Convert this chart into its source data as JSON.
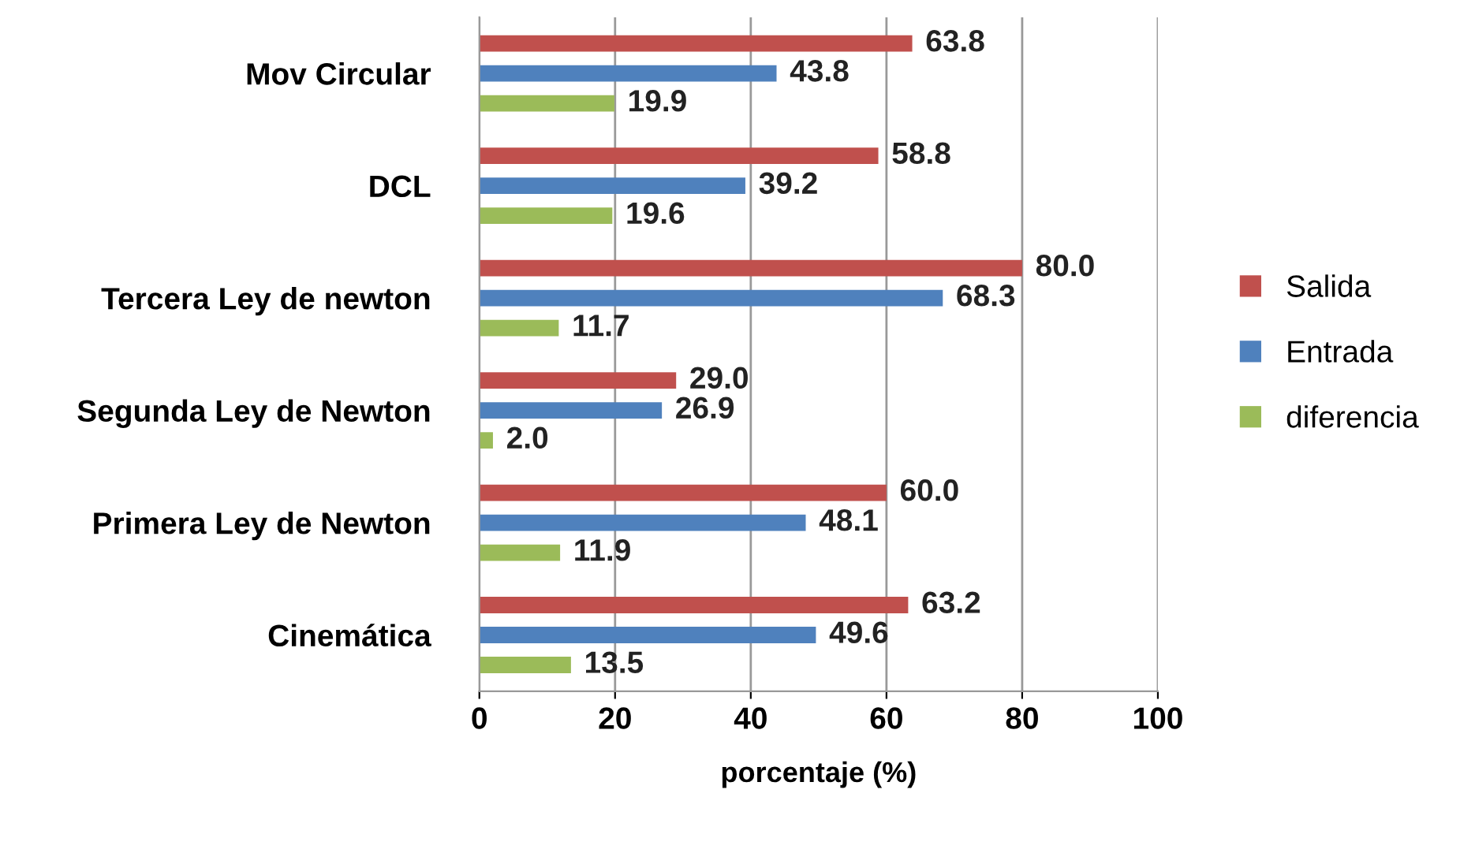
{
  "chart_data": {
    "type": "bar",
    "orientation": "horizontal",
    "xlabel": "porcentaje (%)",
    "categories": [
      "Mov Circular",
      "DCL",
      "Tercera Ley de newton",
      "Segunda Ley de Newton",
      "Primera Ley de Newton",
      "Cinemática"
    ],
    "series": [
      {
        "name": "Salida",
        "color": "#c0504d",
        "values": [
          63.8,
          58.8,
          80.0,
          29.0,
          60.0,
          63.2
        ],
        "value_labels": [
          "63.8",
          "58.8",
          "80.0",
          "29.0",
          "60.0",
          "63.2"
        ]
      },
      {
        "name": "Entrada",
        "color": "#4f81bd",
        "values": [
          43.8,
          39.2,
          68.3,
          26.9,
          48.1,
          49.6
        ],
        "value_labels": [
          "43.8",
          "39.2",
          "68.3",
          "26.9",
          "48.1",
          "49.6"
        ]
      },
      {
        "name": "diferencia",
        "color": "#9bbb59",
        "values": [
          19.9,
          19.6,
          11.7,
          2.0,
          11.9,
          13.5
        ],
        "value_labels": [
          "19.9",
          "19.6",
          "11.7",
          "2.0",
          "11.9",
          "13.5"
        ]
      }
    ],
    "xlim": [
      0,
      100
    ],
    "xticks": [
      0,
      20,
      40,
      60,
      80,
      100
    ],
    "grid": "x",
    "legend": "right"
  }
}
